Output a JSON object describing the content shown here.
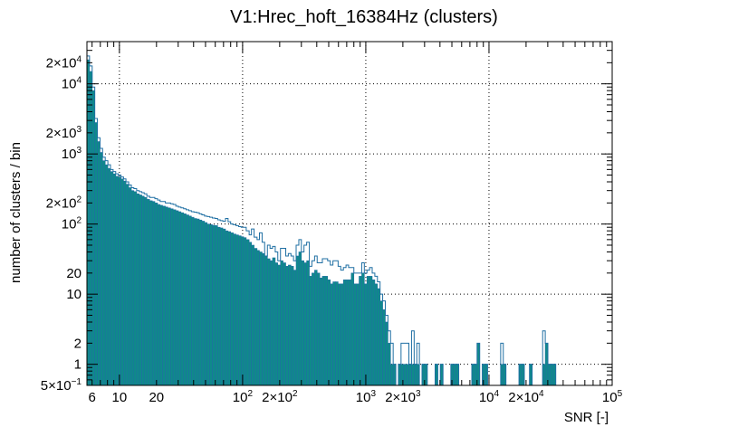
{
  "chart_data": {
    "type": "bar",
    "title": "V1:Hrec_hoft_16384Hz (clusters)",
    "xlabel": "SNR [-]",
    "ylabel": "number of clusters / bin",
    "xscale": "log",
    "yscale": "log",
    "xlim": [
      5.45,
      100000
    ],
    "ylim": [
      0.5,
      40000
    ],
    "grid": true,
    "x_ticks": [
      {
        "value": 6,
        "label": "6"
      },
      {
        "value": 10,
        "label": "10"
      },
      {
        "value": 20,
        "label": "20"
      },
      {
        "value": 100,
        "label": "10",
        "exp": "2"
      },
      {
        "value": 200,
        "label": "2×10",
        "exp": "2"
      },
      {
        "value": 1000,
        "label": "10",
        "exp": "3"
      },
      {
        "value": 2000,
        "label": "2×10",
        "exp": "3"
      },
      {
        "value": 10000,
        "label": "10",
        "exp": "4"
      },
      {
        "value": 20000,
        "label": "2×10",
        "exp": "4"
      },
      {
        "value": 100000,
        "label": "10",
        "exp": "5"
      }
    ],
    "y_ticks": [
      {
        "value": 0.5,
        "label": "5×10",
        "exp": "−1"
      },
      {
        "value": 1,
        "label": "1"
      },
      {
        "value": 2,
        "label": "2"
      },
      {
        "value": 10,
        "label": "10"
      },
      {
        "value": 20,
        "label": "20"
      },
      {
        "value": 100,
        "label": "10",
        "exp": "2"
      },
      {
        "value": 200,
        "label": "2×10",
        "exp": "2"
      },
      {
        "value": 1000,
        "label": "10",
        "exp": "3"
      },
      {
        "value": 2000,
        "label": "2×10",
        "exp": "3"
      },
      {
        "value": 10000,
        "label": "10",
        "exp": "4"
      },
      {
        "value": 20000,
        "label": "2×10",
        "exp": "4"
      }
    ],
    "bin_edges": [
      5.45,
      5.72,
      6.01,
      6.31,
      6.63,
      6.96,
      7.3,
      7.67,
      8.06,
      8.46,
      8.89,
      9.33,
      9.8,
      10.3,
      10.8,
      11.3,
      11.9,
      12.5,
      13.1,
      13.8,
      14.5,
      15.2,
      15.9,
      16.7,
      17.6,
      18.5,
      19.4,
      20.4,
      21.4,
      22.4,
      23.6,
      24.7,
      26.0,
      27.3,
      28.7,
      30.1,
      31.6,
      33.2,
      34.8,
      36.6,
      38.4,
      40.3,
      42.4,
      44.5,
      46.7,
      49.1,
      51.5,
      54.1,
      56.8,
      59.7,
      62.7,
      65.8,
      69.1,
      72.6,
      76.2,
      80.0,
      84.1,
      88.3,
      92.7,
      97.3,
      102,
      107,
      113,
      118,
      124,
      131,
      137,
      144,
      151,
      159,
      167,
      175,
      184,
      193,
      203,
      213,
      224,
      235,
      247,
      259,
      272,
      286,
      300,
      315,
      331,
      348,
      365,
      384,
      403,
      423,
      444,
      467,
      490,
      515,
      541,
      568,
      596,
      626,
      658,
      691,
      725,
      762,
      800,
      840,
      882,
      927,
      973,
      1022,
      1073,
      1127,
      1184,
      1243,
      1306,
      1371,
      1440,
      1512,
      1588,
      1668,
      1752,
      1840,
      1932,
      2029,
      2131,
      2238,
      2351,
      2469,
      2593,
      2723,
      2860,
      3003,
      3154,
      3313,
      3479,
      3654,
      3837,
      4030,
      4233,
      4445,
      4669,
      4903,
      5150,
      5408,
      5680,
      5965,
      6265,
      6580,
      6910,
      7257,
      7622,
      8005,
      8407,
      8829,
      9273,
      9738,
      10227,
      10741,
      11281,
      11847,
      12442,
      13067,
      13724,
      14413,
      15137,
      15898,
      16696,
      17535,
      18416,
      19341,
      20312,
      21333,
      22404,
      23530,
      24712,
      25953,
      27257,
      28626,
      30064,
      31575,
      33161,
      34827,
      36576,
      38413,
      40343,
      42370,
      44498,
      46733,
      49081
    ],
    "series": [
      {
        "style": "outline",
        "color": "#1f6fa3",
        "values": [
          25000,
          18000,
          9000,
          3200,
          1700,
          1200,
          900,
          800,
          700,
          600,
          560,
          520,
          500,
          470,
          440,
          400,
          360,
          330,
          320,
          300,
          290,
          280,
          270,
          250,
          240,
          240,
          230,
          220,
          210,
          210,
          200,
          200,
          195,
          190,
          180,
          175,
          170,
          165,
          160,
          155,
          150,
          148,
          145,
          140,
          135,
          130,
          128,
          125,
          122,
          120,
          115,
          112,
          110,
          120,
          108,
          100,
          98,
          95,
          92,
          90,
          90,
          80,
          70,
          85,
          65,
          60,
          75,
          55,
          35,
          50,
          45,
          48,
          40,
          30,
          45,
          45,
          35,
          38,
          35,
          30,
          50,
          60,
          40,
          50,
          55,
          25,
          30,
          35,
          28,
          28,
          32,
          32,
          30,
          26,
          30,
          30,
          25,
          22,
          24,
          26,
          24,
          24,
          20,
          20,
          20,
          28,
          20,
          22,
          24,
          20,
          18,
          15,
          10,
          8,
          5,
          3,
          2,
          1,
          0,
          1,
          2,
          2,
          2,
          1,
          3,
          1,
          2,
          0,
          1,
          1,
          0,
          0,
          0,
          1,
          0,
          1,
          0,
          0,
          0,
          1,
          1,
          1,
          0,
          0,
          0,
          0,
          0,
          1,
          1,
          2,
          0,
          1,
          1,
          0,
          0,
          0,
          0,
          0,
          2,
          1,
          0,
          0,
          0,
          0,
          0,
          1,
          1,
          0,
          0,
          1,
          0,
          0,
          0,
          0,
          3,
          2,
          1,
          1,
          1,
          0,
          0,
          0,
          0,
          0,
          0,
          0
        ]
      },
      {
        "style": "filled",
        "color": "#1f6fa3",
        "fill": "#0f8a8a",
        "values": [
          22000,
          15000,
          8000,
          2800,
          1500,
          1050,
          800,
          700,
          620,
          560,
          520,
          480,
          470,
          440,
          410,
          370,
          330,
          300,
          290,
          270,
          260,
          250,
          240,
          225,
          215,
          210,
          200,
          190,
          185,
          180,
          175,
          170,
          165,
          160,
          155,
          150,
          145,
          140,
          135,
          130,
          125,
          120,
          118,
          114,
          110,
          105,
          100,
          98,
          96,
          95,
          90,
          88,
          85,
          80,
          78,
          75,
          72,
          70,
          68,
          66,
          64,
          60,
          55,
          50,
          45,
          42,
          40,
          38,
          35,
          32,
          30,
          33,
          28,
          26,
          30,
          28,
          25,
          26,
          25,
          22,
          35,
          40,
          30,
          28,
          30,
          18,
          20,
          22,
          20,
          17,
          18,
          18,
          16,
          14,
          15,
          15,
          14,
          14,
          16,
          16,
          16,
          20,
          14,
          14,
          18,
          20,
          14,
          18,
          18,
          16,
          14,
          12,
          8,
          6,
          4,
          2,
          1,
          1,
          0,
          1,
          1,
          1,
          1,
          1,
          1,
          1,
          1,
          0,
          1,
          1,
          0,
          0,
          0,
          1,
          0,
          1,
          0,
          0,
          0,
          1,
          1,
          1,
          0,
          0,
          0,
          0,
          0,
          1,
          1,
          2,
          0,
          1,
          1,
          0,
          0,
          0,
          0,
          0,
          1,
          1,
          0,
          0,
          0,
          0,
          0,
          1,
          1,
          0,
          0,
          1,
          0,
          0,
          0,
          0,
          1,
          2,
          1,
          1,
          1,
          0,
          0,
          0,
          0,
          0,
          0,
          0
        ]
      }
    ]
  }
}
